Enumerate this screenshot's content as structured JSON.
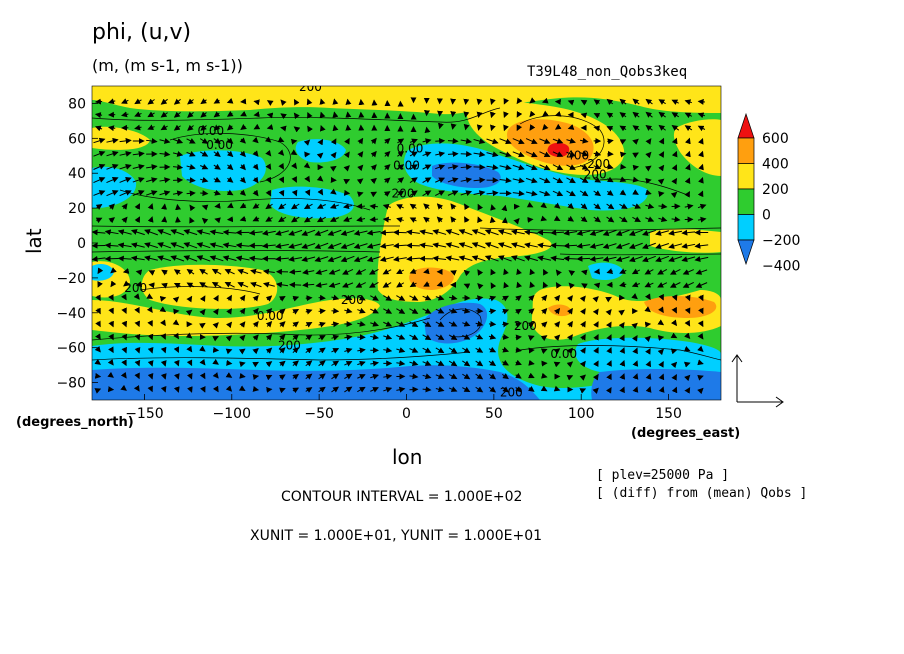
{
  "header": {
    "title": "phi, (u,v)",
    "units": "(m, (m s-1, m s-1))",
    "run_name": "T39L48_non_Qobs3keq"
  },
  "axes": {
    "ylabel": "lat",
    "xlabel": "lon",
    "y_units": "(degrees_north)",
    "x_units": "(degrees_east)"
  },
  "annotations": {
    "plev": "[ plev=25000 Pa ]",
    "diff": "[ (diff) from (mean) Qobs ]",
    "contour_interval": "CONTOUR INTERVAL = 1.000E+02",
    "vector_units": "XUNIT = 1.000E+01, YUNIT = 1.000E+01"
  },
  "chart_data": {
    "type": "heatmap",
    "variable": "phi",
    "xlim": [
      -180,
      180
    ],
    "ylim": [
      -90,
      90
    ],
    "x_ticks": [
      -150,
      -100,
      -50,
      0,
      50,
      100,
      150
    ],
    "x_tick_labels": [
      "−150",
      "−100",
      "−50",
      "0",
      "50",
      "100",
      "150"
    ],
    "y_ticks": [
      -80,
      -60,
      -40,
      -20,
      0,
      20,
      40,
      60,
      80
    ],
    "y_tick_labels": [
      "−80",
      "−60",
      "−40",
      "−20",
      "0",
      "20",
      "40",
      "60",
      "80"
    ],
    "colorbar": {
      "levels": [
        -400,
        -200,
        0,
        200,
        400,
        600
      ],
      "labels": [
        "−400",
        "−200",
        "0",
        "200",
        "400",
        "600"
      ],
      "colors": [
        "#1e7ae8",
        "#00cfff",
        "#2fcc2f",
        "#ffe519",
        "#ff9f0f",
        "#ee1111"
      ]
    },
    "contour_labels": [
      {
        "text": "200",
        "lon": -55,
        "lat": 87
      },
      {
        "text": "0.00",
        "lon": -112,
        "lat": 62
      },
      {
        "text": "0.00",
        "lon": -107,
        "lat": 54
      },
      {
        "text": "0.00",
        "lon": 2,
        "lat": 52
      },
      {
        "text": "0.00",
        "lon": 0,
        "lat": 42
      },
      {
        "text": "200",
        "lon": -2,
        "lat": 26
      },
      {
        "text": "400",
        "lon": 98,
        "lat": 48
      },
      {
        "text": "200",
        "lon": 110,
        "lat": 43
      },
      {
        "text": "200",
        "lon": 108,
        "lat": 37
      },
      {
        "text": "200",
        "lon": -155,
        "lat": -28
      },
      {
        "text": "200",
        "lon": -31,
        "lat": -35
      },
      {
        "text": "0.00",
        "lon": -78,
        "lat": -44
      },
      {
        "text": "200",
        "lon": -67,
        "lat": -61
      },
      {
        "text": "200",
        "lon": 68,
        "lat": -50
      },
      {
        "text": "0.00",
        "lon": 90,
        "lat": -66
      },
      {
        "text": "200",
        "lon": 60,
        "lat": -88
      }
    ]
  }
}
